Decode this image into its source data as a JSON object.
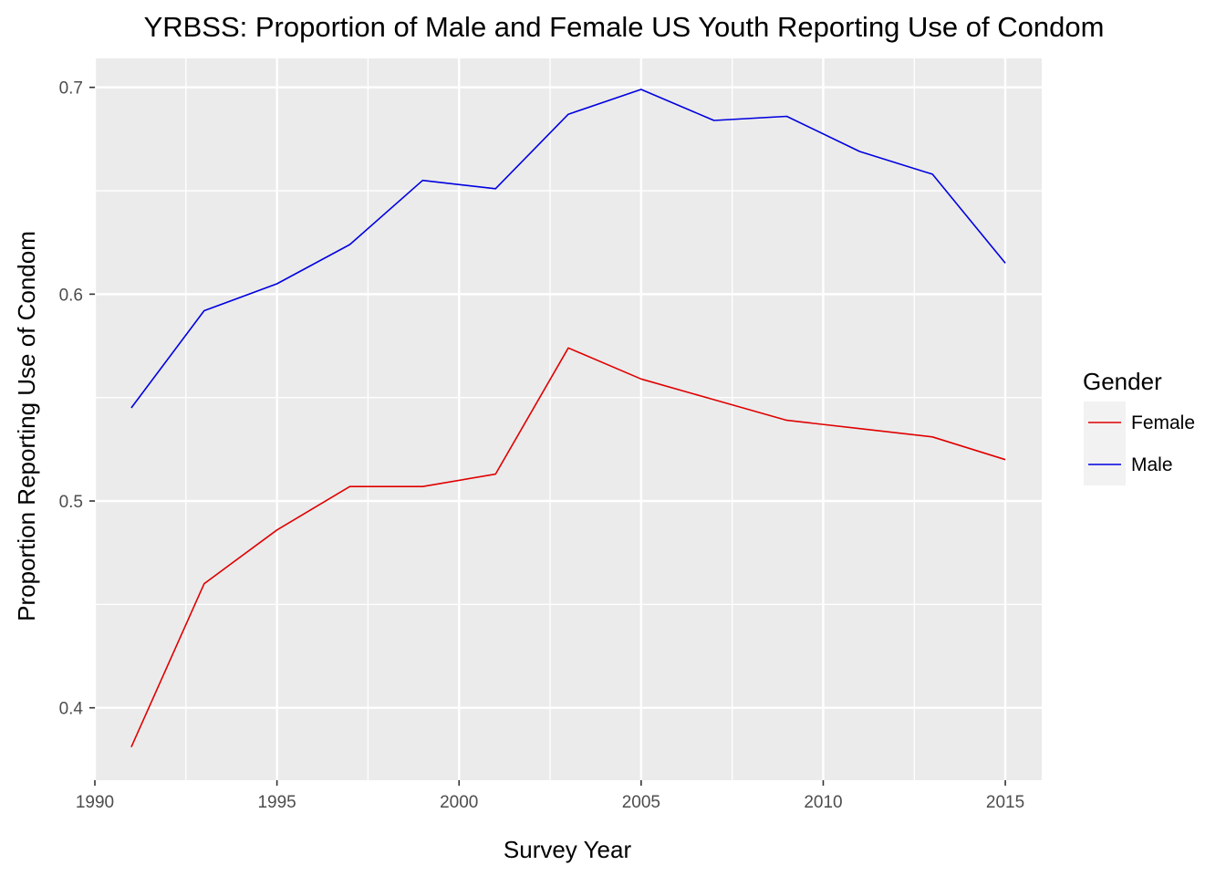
{
  "chart_data": {
    "type": "line",
    "title": "YRBSS: Proportion of Male and Female US Youth Reporting Use of Condom",
    "xlabel": "Survey Year",
    "ylabel": "Proportion Reporting Use of Condom",
    "xlim": [
      1990,
      2016
    ],
    "ylim": [
      0.365,
      0.714
    ],
    "x_ticks": [
      1990,
      1995,
      2000,
      2005,
      2010,
      2015
    ],
    "x_tick_labels": [
      "1990",
      "1995",
      "2000",
      "2005",
      "2010",
      "2015"
    ],
    "y_ticks": [
      0.4,
      0.5,
      0.6,
      0.7
    ],
    "y_tick_labels": [
      "0.4",
      "0.5",
      "0.6",
      "0.7"
    ],
    "grid": true,
    "legend": {
      "title": "Gender",
      "position": "right",
      "entries": [
        "Female",
        "Male"
      ]
    },
    "series": [
      {
        "name": "Female",
        "color": "#e00000",
        "x": [
          1991,
          1993,
          1995,
          1997,
          1999,
          2001,
          2003,
          2005,
          2007,
          2009,
          2011,
          2013,
          2015
        ],
        "y": [
          0.381,
          0.46,
          0.486,
          0.507,
          0.507,
          0.513,
          0.574,
          0.559,
          0.549,
          0.539,
          0.535,
          0.531,
          0.52
        ]
      },
      {
        "name": "Male",
        "color": "#0000e0",
        "x": [
          1991,
          1993,
          1995,
          1997,
          1999,
          2001,
          2003,
          2005,
          2007,
          2009,
          2011,
          2013,
          2015
        ],
        "y": [
          0.545,
          0.592,
          0.605,
          0.624,
          0.655,
          0.651,
          0.687,
          0.699,
          0.684,
          0.686,
          0.669,
          0.658,
          0.615
        ]
      }
    ]
  }
}
